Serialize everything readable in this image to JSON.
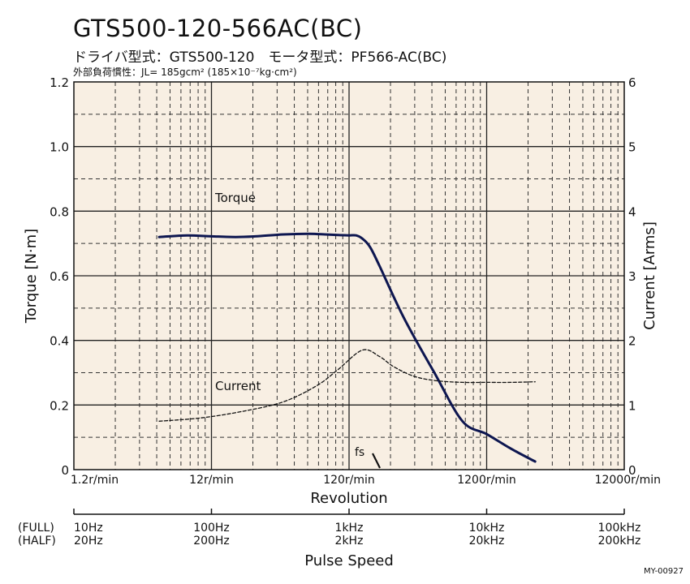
{
  "chart_data": {
    "type": "line",
    "title": "GTS500-120-566AC(BC)",
    "subtitle": "ドライバ型式：GTS500-120　モータ型式：PF566-AC(BC)",
    "note": "外部負荷慣性：JL= 185gcm² (185×10⁻⁷kg·cm²)",
    "xlabel": "Revolution",
    "xscale": "log",
    "xlim": [
      1.2,
      12000
    ],
    "x_tick_labels": [
      "1.2r/min",
      "12r/min",
      "120r/min",
      "1200r/min",
      "12000r/min"
    ],
    "ylabel_left": "Torque [N·m]",
    "ylim_left": [
      0,
      1.2
    ],
    "y_tick_labels_left": [
      "0",
      "0.2",
      "0.4",
      "0.6",
      "0.8",
      "1.0",
      "1.2"
    ],
    "ylabel_right": "Current [Arms]",
    "ylim_right": [
      0,
      6
    ],
    "y_tick_labels_right": [
      "0",
      "1",
      "2",
      "3",
      "4",
      "5",
      "6"
    ],
    "grid": true,
    "series": [
      {
        "name": "Torque",
        "axis": "left",
        "x": [
          5,
          8,
          12,
          18,
          25,
          40,
          60,
          80,
          100,
          120,
          135,
          150,
          170,
          200,
          300,
          500,
          800,
          1200,
          1800,
          2700
        ],
        "values": [
          0.72,
          0.725,
          0.722,
          0.72,
          0.722,
          0.728,
          0.73,
          0.728,
          0.726,
          0.725,
          0.725,
          0.715,
          0.69,
          0.63,
          0.47,
          0.3,
          0.15,
          0.11,
          0.065,
          0.025
        ]
      },
      {
        "name": "Current",
        "axis": "right",
        "x": [
          5,
          10,
          20,
          40,
          70,
          100,
          150,
          200,
          250,
          350,
          500,
          800,
          1200,
          1800,
          2700
        ],
        "values": [
          0.75,
          0.8,
          0.9,
          1.05,
          1.3,
          1.55,
          1.85,
          1.75,
          1.6,
          1.45,
          1.38,
          1.35,
          1.35,
          1.35,
          1.36
        ]
      }
    ],
    "fs_label": "fs",
    "pulse_axis": {
      "label": "Pulse Speed",
      "full_label": "(FULL)",
      "half_label": "(HALF)",
      "full_ticks": [
        "10Hz",
        "100Hz",
        "1kHz",
        "10kHz",
        "100kHz"
      ],
      "half_ticks": [
        "20Hz",
        "200Hz",
        "2kHz",
        "20kHz",
        "200kHz"
      ]
    },
    "colors": {
      "background": "#f8efe3",
      "torque": "#0d1650",
      "current": "#111111"
    }
  },
  "doc_code": "MY-00927"
}
